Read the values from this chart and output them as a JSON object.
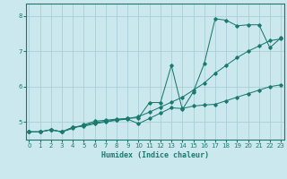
{
  "title": "",
  "xlabel": "Humidex (Indice chaleur)",
  "ylabel": "",
  "bg_color": "#cce8ef",
  "grid_color": "#aacdd6",
  "line_color": "#1a7a6e",
  "x_ticks": [
    0,
    1,
    2,
    3,
    4,
    5,
    6,
    7,
    8,
    9,
    10,
    11,
    12,
    13,
    14,
    15,
    16,
    17,
    18,
    19,
    20,
    21,
    22,
    23
  ],
  "y_ticks": [
    5,
    6,
    7,
    8
  ],
  "xlim": [
    -0.3,
    23.3
  ],
  "ylim": [
    4.5,
    8.35
  ],
  "series1_x": [
    0,
    1,
    2,
    3,
    4,
    5,
    6,
    7,
    8,
    9,
    10,
    11,
    12,
    13,
    14,
    15,
    16,
    17,
    18,
    19,
    20,
    21,
    22,
    23
  ],
  "series1_y": [
    4.72,
    4.72,
    4.78,
    4.72,
    4.82,
    4.92,
    5.02,
    5.05,
    5.08,
    5.1,
    5.12,
    5.55,
    5.55,
    6.6,
    5.35,
    5.85,
    6.65,
    7.92,
    7.88,
    7.72,
    7.75,
    7.75,
    7.1,
    7.38
  ],
  "series2_x": [
    0,
    1,
    2,
    3,
    4,
    5,
    6,
    7,
    8,
    9,
    10,
    11,
    12,
    13,
    14,
    15,
    16,
    17,
    18,
    19,
    20,
    21,
    22,
    23
  ],
  "series2_y": [
    4.72,
    4.72,
    4.78,
    4.72,
    4.85,
    4.88,
    4.95,
    5.0,
    5.05,
    5.08,
    4.95,
    5.1,
    5.25,
    5.4,
    5.38,
    5.45,
    5.48,
    5.5,
    5.6,
    5.7,
    5.8,
    5.9,
    6.0,
    6.05
  ],
  "series3_x": [
    0,
    1,
    2,
    3,
    4,
    5,
    6,
    7,
    8,
    9,
    10,
    11,
    12,
    13,
    14,
    15,
    16,
    17,
    18,
    19,
    20,
    21,
    22,
    23
  ],
  "series3_y": [
    4.72,
    4.72,
    4.78,
    4.72,
    4.85,
    4.9,
    4.98,
    5.02,
    5.06,
    5.1,
    5.15,
    5.28,
    5.42,
    5.56,
    5.7,
    5.9,
    6.1,
    6.38,
    6.6,
    6.82,
    7.0,
    7.15,
    7.3,
    7.35
  ]
}
